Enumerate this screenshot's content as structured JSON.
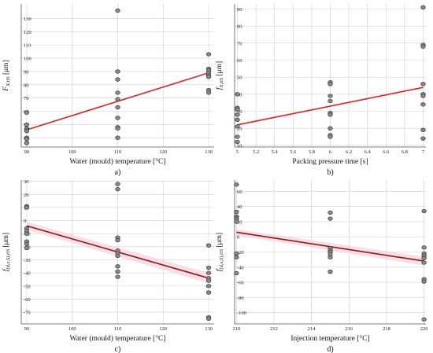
{
  "chart_data": [
    {
      "id": "a",
      "type": "scatter",
      "panel_label": "a)",
      "xlabel": "Water (mould) temperature [°C]",
      "ylabel": {
        "main": "F",
        "sub": "X,tiS",
        "unit": " [μm]"
      },
      "xlim": [
        88.8,
        131.2
      ],
      "ylim": [
        33,
        141
      ],
      "xticks": [
        90,
        100,
        110,
        120,
        130
      ],
      "yticks": [
        40,
        50,
        60,
        70,
        80,
        90,
        100,
        110,
        120,
        130
      ],
      "grid": true,
      "points": [
        [
          90,
          59
        ],
        [
          90,
          50
        ],
        [
          90,
          47
        ],
        [
          90,
          46
        ],
        [
          90,
          45
        ],
        [
          90,
          40
        ],
        [
          90,
          39
        ],
        [
          90,
          36
        ],
        [
          110,
          136
        ],
        [
          110,
          90
        ],
        [
          110,
          84
        ],
        [
          110,
          74
        ],
        [
          110,
          69
        ],
        [
          110,
          63
        ],
        [
          110,
          55
        ],
        [
          110,
          48
        ],
        [
          110,
          47
        ],
        [
          110,
          40
        ],
        [
          130,
          103
        ],
        [
          130,
          92
        ],
        [
          130,
          91
        ],
        [
          130,
          89
        ],
        [
          130,
          87
        ],
        [
          130,
          86
        ],
        [
          130,
          76
        ],
        [
          130,
          74
        ]
      ],
      "fit_line": [
        [
          90,
          46
        ],
        [
          130,
          89
        ]
      ],
      "band": null
    },
    {
      "id": "b",
      "type": "scatter",
      "panel_label": "b)",
      "xlabel": "Packing pressure time [s]",
      "ylabel": {
        "main": "f",
        "sub": "X,tiS",
        "unit": " [μm]"
      },
      "xlim": [
        4.97,
        7.03
      ],
      "ylim": [
        9,
        93
      ],
      "xticks": [
        5,
        5.2,
        5.4,
        5.6,
        5.8,
        6,
        6.2,
        6.4,
        6.6,
        6.8,
        7
      ],
      "yticks": [
        10,
        20,
        30,
        40,
        50,
        60,
        70,
        80,
        90
      ],
      "grid": true,
      "points": [
        [
          5,
          40
        ],
        [
          5,
          32
        ],
        [
          5,
          31
        ],
        [
          5,
          28
        ],
        [
          5,
          25
        ],
        [
          5,
          21
        ],
        [
          5,
          15
        ],
        [
          5,
          12
        ],
        [
          6,
          47
        ],
        [
          6,
          46
        ],
        [
          6,
          39
        ],
        [
          6,
          36
        ],
        [
          6,
          29
        ],
        [
          6,
          28
        ],
        [
          6,
          20
        ],
        [
          6,
          16
        ],
        [
          6,
          15
        ],
        [
          7,
          91
        ],
        [
          7,
          69
        ],
        [
          7,
          68
        ],
        [
          7,
          46
        ],
        [
          7,
          40
        ],
        [
          7,
          39
        ],
        [
          7,
          34
        ],
        [
          7,
          19
        ],
        [
          7,
          14
        ]
      ],
      "fit_line": [
        [
          5,
          22
        ],
        [
          7,
          44
        ]
      ],
      "band": null
    },
    {
      "id": "c",
      "type": "scatter",
      "panel_label": "c)",
      "xlabel": "Water (mould) temperature [°C]",
      "ylabel": {
        "main": "f",
        "sub": "(d,x,S),tiS",
        "unit": " [μm]"
      },
      "xlim": [
        88.8,
        131.2
      ],
      "ylim": [
        -79,
        31
      ],
      "xticks": [
        90,
        100,
        110,
        120,
        130
      ],
      "yticks": [
        -70,
        -60,
        -50,
        -40,
        -30,
        -20,
        -10,
        0,
        10,
        20,
        30
      ],
      "grid": true,
      "points": [
        [
          90,
          11
        ],
        [
          90,
          10
        ],
        [
          90,
          -6
        ],
        [
          90,
          -8
        ],
        [
          90,
          -10
        ],
        [
          90,
          -16
        ],
        [
          90,
          -18
        ],
        [
          90,
          -21
        ],
        [
          110,
          28
        ],
        [
          110,
          24
        ],
        [
          110,
          -13
        ],
        [
          110,
          -15
        ],
        [
          110,
          -23
        ],
        [
          110,
          -25
        ],
        [
          110,
          -27
        ],
        [
          110,
          -35
        ],
        [
          110,
          -39
        ],
        [
          110,
          -43
        ],
        [
          130,
          -19
        ],
        [
          130,
          -36
        ],
        [
          130,
          -40
        ],
        [
          130,
          -44
        ],
        [
          130,
          -46
        ],
        [
          130,
          -50
        ],
        [
          130,
          -55
        ],
        [
          130,
          -74
        ],
        [
          130,
          -75
        ]
      ],
      "fit_line": [
        [
          90,
          -4
        ],
        [
          130,
          -44
        ]
      ],
      "band": [
        [
          90,
          -1,
          -7
        ],
        [
          130,
          -40,
          -48
        ]
      ]
    },
    {
      "id": "d",
      "type": "scatter",
      "panel_label": "d)",
      "xlabel": "Injection temperature [°C]",
      "ylabel": {
        "main": "f",
        "sub": "(d,x,S),tiS",
        "unit": " [μm]"
      },
      "xlim": [
        209.9,
        220.1
      ],
      "ylim": [
        -115,
        75
      ],
      "xticks": [
        210,
        212,
        214,
        216,
        218,
        220
      ],
      "yticks": [
        -100,
        -80,
        -60,
        -40,
        -20,
        0,
        20,
        40,
        60
      ],
      "grid": true,
      "points": [
        [
          210,
          69
        ],
        [
          210,
          33
        ],
        [
          210,
          27
        ],
        [
          210,
          25
        ],
        [
          210,
          23
        ],
        [
          210,
          20
        ],
        [
          210,
          -22
        ],
        [
          210,
          -27
        ],
        [
          210,
          -48
        ],
        [
          215,
          32
        ],
        [
          215,
          24
        ],
        [
          215,
          -15
        ],
        [
          215,
          -18
        ],
        [
          215,
          -20
        ],
        [
          215,
          -23
        ],
        [
          215,
          -27
        ],
        [
          215,
          -46
        ],
        [
          220,
          34
        ],
        [
          220,
          -14
        ],
        [
          220,
          -22
        ],
        [
          220,
          -25
        ],
        [
          220,
          -28
        ],
        [
          220,
          -34
        ],
        [
          220,
          -56
        ],
        [
          220,
          -59
        ],
        [
          220,
          -109
        ]
      ],
      "fit_line": [
        [
          210,
          6
        ],
        [
          220,
          -32
        ]
      ],
      "band": [
        [
          210,
          10,
          2
        ],
        [
          220,
          -26,
          -38
        ]
      ]
    }
  ],
  "colors": {
    "grid": "#cfcfcf",
    "axis": "#555555",
    "point_fill": "#8a8a8a",
    "point_stroke": "#3a3a3a",
    "fit_red": "#e0201c",
    "fit_dark": "#8a1a12",
    "band": "#f6d3de"
  }
}
